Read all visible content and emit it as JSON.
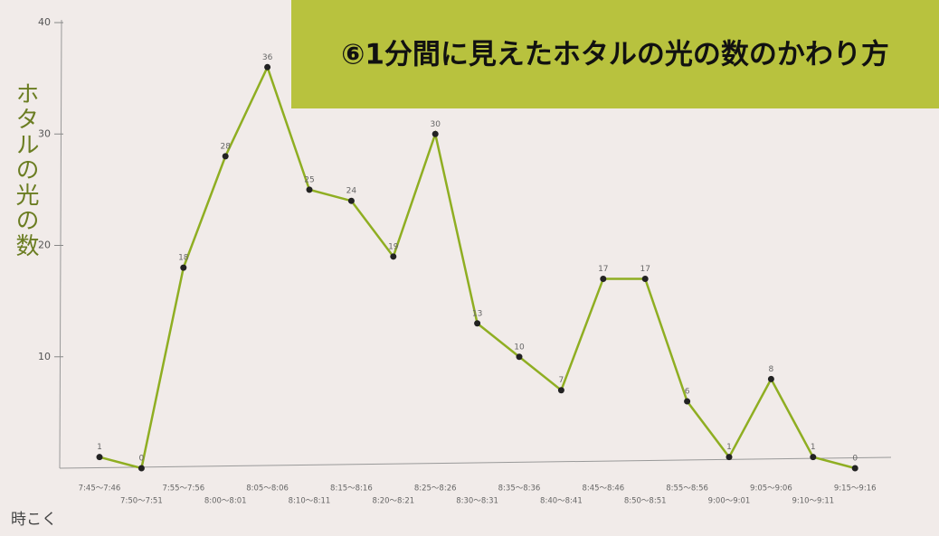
{
  "chart_data": {
    "type": "line",
    "title": "⑥1分間に見えたホタルの光の数のかわり方",
    "y_label": "ホタルの光の数",
    "x_label": "時こく",
    "categories": [
      "7:45〜7:46",
      "7:50〜7:51",
      "7:55〜7:56",
      "8:00〜8:01",
      "8:05〜8:06",
      "8:10〜8:11",
      "8:15〜8:16",
      "8:20〜8:21",
      "8:25〜8:26",
      "8:30〜8:31",
      "8:35〜8:36",
      "8:40〜8:41",
      "8:45〜8:46",
      "8:50〜8:51",
      "8:55〜8:56",
      "9:00〜9:01",
      "9:05〜9:06",
      "9:10〜9:11",
      "9:15〜9:16"
    ],
    "values": [
      1,
      0,
      18,
      28,
      36,
      25,
      24,
      19,
      30,
      13,
      10,
      7,
      17,
      17,
      6,
      1,
      8,
      1,
      0
    ],
    "color": "#8fae22",
    "ylim": [
      0,
      40
    ],
    "yticks": [
      10,
      20,
      30,
      40
    ],
    "grid": false
  }
}
